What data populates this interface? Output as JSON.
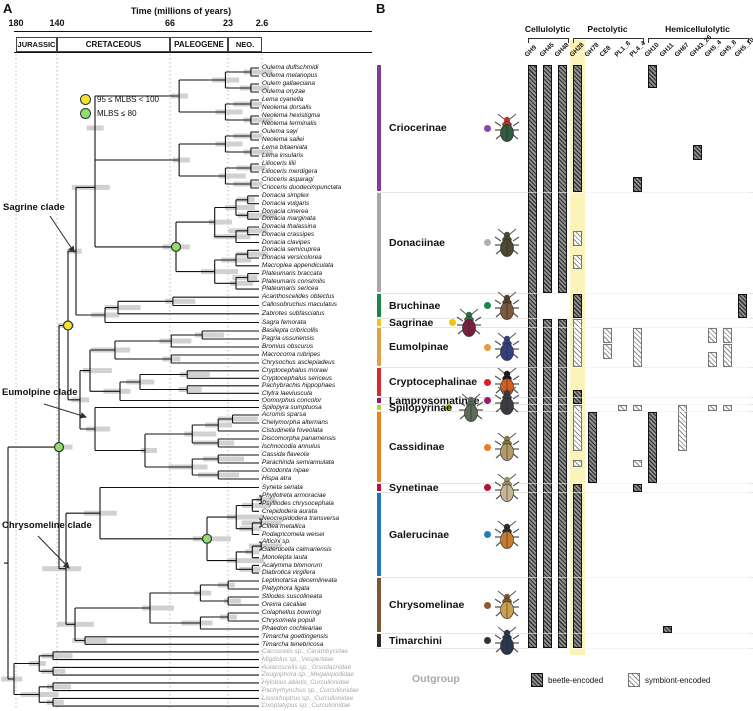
{
  "panel_a": {
    "label": "A",
    "time_axis": {
      "title": "Time (millions of years)",
      "ticks": [
        "180",
        "140",
        "66",
        "23",
        "2.6"
      ],
      "eras": [
        "JURASSIC",
        "CRETACEOUS",
        "PALEOGENE",
        "NEO."
      ]
    },
    "legend": [
      {
        "symbol": "yellow-circle",
        "color": "#f4e431",
        "label": "95 ≤ MLBS < 100"
      },
      {
        "symbol": "green-circle",
        "color": "#8ee06e",
        "label": "MLBS ≤ 80"
      }
    ],
    "clade_labels": [
      "Sagrine clade",
      "Eumolpine clade",
      "Chrysomeline clade"
    ]
  },
  "panel_b": {
    "label": "B",
    "groups": [
      {
        "name": "Cellulolytic",
        "col_start": 0,
        "col_end": 2
      },
      {
        "name": "Pectolytic",
        "col_start": 3,
        "col_end": 7
      },
      {
        "name": "Hemicellulolytic",
        "col_start": 8,
        "col_end": 14
      }
    ],
    "columns": [
      "GH9",
      "GH45",
      "GH48",
      "GH28",
      "GH78",
      "CE8",
      "PL1_8",
      "PL4_4",
      "GH10",
      "GH11",
      "GH67",
      "GH43_26",
      "GH5_4",
      "GH5_8",
      "GH5_10"
    ],
    "highlight_column": "GH28",
    "highlight_color": "#faf3ba",
    "legend": [
      {
        "style": "beetle",
        "label": "beetle-encoded"
      },
      {
        "style": "symbiont",
        "label": "symbiont-encoded"
      }
    ],
    "bars": [
      {
        "c": 0,
        "a": 0,
        "b": 73,
        "e": "beetle"
      },
      {
        "c": 1,
        "a": 0,
        "b": 28,
        "e": "beetle"
      },
      {
        "c": 1,
        "a": 32,
        "b": 73,
        "e": "beetle"
      },
      {
        "c": 2,
        "a": 0,
        "b": 28,
        "e": "beetle"
      },
      {
        "c": 2,
        "a": 32,
        "b": 73,
        "e": "beetle"
      },
      {
        "c": 3,
        "a": 0,
        "b": 15,
        "e": "beetle"
      },
      {
        "c": 3,
        "a": 21,
        "b": 22,
        "e": "symbiont"
      },
      {
        "c": 3,
        "a": 24,
        "b": 25,
        "e": "symbiont"
      },
      {
        "c": 3,
        "a": 29,
        "b": 31,
        "e": "beetle"
      },
      {
        "c": 3,
        "a": 32,
        "b": 37,
        "e": "symbiont"
      },
      {
        "c": 3,
        "a": 41,
        "b": 42,
        "e": "beetle"
      },
      {
        "c": 3,
        "a": 43,
        "b": 48,
        "e": "symbiont"
      },
      {
        "c": 3,
        "a": 50,
        "b": 50,
        "e": "symbiont"
      },
      {
        "c": 3,
        "a": 53,
        "b": 73,
        "e": "beetle"
      },
      {
        "c": 4,
        "a": 44,
        "b": 52,
        "e": "beetle"
      },
      {
        "c": 5,
        "a": 33,
        "b": 34,
        "e": "symbiont"
      },
      {
        "c": 5,
        "a": 35,
        "b": 36,
        "e": "symbiont"
      },
      {
        "c": 6,
        "a": 43,
        "b": 43,
        "e": "symbiont"
      },
      {
        "c": 7,
        "a": 14,
        "b": 15,
        "e": "beetle"
      },
      {
        "c": 7,
        "a": 33,
        "b": 37,
        "e": "symbiont"
      },
      {
        "c": 7,
        "a": 43,
        "b": 43,
        "e": "symbiont"
      },
      {
        "c": 7,
        "a": 50,
        "b": 50,
        "e": "symbiont"
      },
      {
        "c": 7,
        "a": 53,
        "b": 53,
        "e": "beetle"
      },
      {
        "c": 8,
        "a": 0,
        "b": 2,
        "e": "beetle"
      },
      {
        "c": 8,
        "a": 44,
        "b": 52,
        "e": "beetle"
      },
      {
        "c": 9,
        "a": 71,
        "b": 71,
        "e": "beetle"
      },
      {
        "c": 10,
        "a": 43,
        "b": 48,
        "e": "symbiont"
      },
      {
        "c": 11,
        "a": 10,
        "b": 11,
        "e": "beetle"
      },
      {
        "c": 12,
        "a": 33,
        "b": 34,
        "e": "symbiont"
      },
      {
        "c": 12,
        "a": 36,
        "b": 37,
        "e": "symbiont"
      },
      {
        "c": 12,
        "a": 43,
        "b": 43,
        "e": "symbiont"
      },
      {
        "c": 13,
        "a": 33,
        "b": 34,
        "e": "symbiont"
      },
      {
        "c": 13,
        "a": 35,
        "b": 37,
        "e": "symbiont"
      },
      {
        "c": 13,
        "a": 43,
        "b": 43,
        "e": "symbiont"
      },
      {
        "c": 14,
        "a": 29,
        "b": 31,
        "e": "beetle"
      }
    ]
  },
  "subfamilies": [
    {
      "name": "Criocerinae",
      "color": "#7d3c98",
      "dot": "#8e44ad",
      "beetle_body": "#2f5d3d",
      "beetle_head": "#b03a2e",
      "species": [
        "Oulema duftschmidi",
        "Oulema melanopus",
        "Oulem gallaeciana",
        "Oulema oryzae",
        "Lema cyanella",
        "Neolema dorsalis",
        "Neolema hexistigma",
        "Neolema terminalis",
        "Oulema sayi",
        "Neolema sallei",
        "Lema bitaeniata",
        "Lema insularis",
        "Lilioceris lilii",
        "Lilioceris merdigera",
        "Crioceris asparagi",
        "Crioceris duodecimpunctata"
      ]
    },
    {
      "name": "Donaciinae",
      "color": "#a6a6a6",
      "dot": "#b0b0b0",
      "beetle_body": "#4d4a2f",
      "beetle_head": "#4d4a2f",
      "species": [
        "Donacia simplex",
        "Donacia vulgaris",
        "Donacia cinerea",
        "Donacia marginata",
        "Donacia thalassina",
        "Donacia crassipes",
        "Donacia clavipes",
        "Donacia semicuprea",
        "Donacia versicolorea",
        "Macroplea appendiculata",
        "Plateumaris braccata",
        "Plateumaris consimilis",
        "Plateumaris sericea"
      ]
    },
    {
      "name": "Bruchinae",
      "color": "#1d8649",
      "dot": "#1e8449",
      "beetle_body": "#7d5a3c",
      "beetle_head": "#5a4027",
      "species": [
        "Acanthoscelides obtectus",
        "Callosobruchus maculatus",
        "Zabrotes subfasciatus"
      ]
    },
    {
      "name": "Sagrinae",
      "color": "#f0c419",
      "dot": "#f1c40f",
      "beetle_body": "#7a2040",
      "beetle_head": "#2e6b3e",
      "species": [
        "Sagra femorata"
      ]
    },
    {
      "name": "Eumolpinae",
      "color": "#dfa24a",
      "dot": "#e59b3c",
      "beetle_body": "#32427e",
      "beetle_head": "#32427e",
      "species": [
        "Basilepta cribricollis",
        "Pagria ussuriensis",
        "Bromius obscurus",
        "Macrocoma rubripes",
        "Chrysochus asclepiadeus"
      ]
    },
    {
      "name": "Cryptocephalinae",
      "color": "#d62b2b",
      "dot": "#e02020",
      "beetle_body": "#d2601a",
      "beetle_head": "#1a1a1a",
      "species": [
        "Cryptocephalus moraei",
        "Cryptocephalus sericeus",
        "Pachybrachis hippophaes",
        "Clytra laeviuscula"
      ]
    },
    {
      "name": "Lamprosomatinae",
      "color": "#8e1d6b",
      "dot": "#9b1d64",
      "beetle_body": "#3c3c44",
      "beetle_head": "#3c3c44",
      "species": [
        "Oomorphus concolor"
      ]
    },
    {
      "name": "Spilopyrinae",
      "color": "#bcd02c",
      "dot": "#b8cc2a",
      "beetle_body": "#5d6b58",
      "beetle_head": "#5d6b58",
      "species": [
        "Spilopyra sumptuosa"
      ]
    },
    {
      "name": "Cassidinae",
      "color": "#e8821e",
      "dot": "#e87e1e",
      "beetle_body": "#b29b67",
      "beetle_head": "#8a7545",
      "species": [
        "Acromis sparsa",
        "Chelymorpha alternans",
        "Cistudinella foveolata",
        "Discomorpha panamensis",
        "Ischnocodia annulus",
        "Cassida flaveola",
        "Parachirida semiannulata",
        "Octodonta nipae",
        "Hispa atra"
      ]
    },
    {
      "name": "Synetinae",
      "color": "#b01430",
      "dot": "#b01430",
      "beetle_body": "#c7b491",
      "beetle_head": "#a08c68",
      "species": [
        "Syneta seriata"
      ]
    },
    {
      "name": "Galerucinae",
      "color": "#2176bd",
      "dot": "#1f7ec2",
      "beetle_body": "#c97b2d",
      "beetle_head": "#2d2d2d",
      "species": [
        "Phyllotreta armoraciae",
        "Psylliodes chrysocephala",
        "Crepidodera aurata",
        "Neocrepidodera transversa",
        "Clitea metallica",
        "Podagricomela weisei",
        "Alticini sp.",
        "Galerucella calmariensis",
        "Monolepta lauta",
        "Acalymma blomorum",
        "Diabrotica virgifera"
      ]
    },
    {
      "name": "Chrysomelinae",
      "color": "#7d5633",
      "dot": "#8a5a33",
      "beetle_body": "#c9a14c",
      "beetle_head": "#7a5a2a",
      "species": [
        "Leptinotarsa decemlineata",
        "Platyphora ligata",
        "Stilodes suscolineata",
        "Oreina cacaliae",
        "Colaphellus bowringi",
        "Chrysomela populi",
        "Phaedon cochleariae"
      ]
    },
    {
      "name": "Timarchini",
      "color": "#2b2b2b",
      "dot": "#333333",
      "beetle_body": "#2c3850",
      "beetle_head": "#2c3850",
      "species": [
        "Timarcha goettingensis",
        "Timarcha tenebricosa"
      ]
    },
    {
      "name": "Outgroup",
      "color": "",
      "dot": "",
      "beetle_body": "",
      "beetle_head": "",
      "species": [
        "Cacoscelis sp._Cerambycidae",
        "Migdolus sp._Vesperidae",
        "Aulacoscelis sp._Orsodacnidae",
        "Zeugophora sp._Megalopodidae",
        "Hylobius abietis_Curculionidae",
        "Pachyrhynchus sp._Curculionidae",
        "Lissorhoptrus sp._Curculionidae",
        "Oxoplatypus sp._Curculionidae"
      ]
    }
  ],
  "colors": {
    "outgroup_text": "#a8a8a8",
    "node_yellow": "#f4e431",
    "node_green": "#8ee06e",
    "ci_bar": "#cccccc",
    "gridline": "#bdbdbd"
  }
}
